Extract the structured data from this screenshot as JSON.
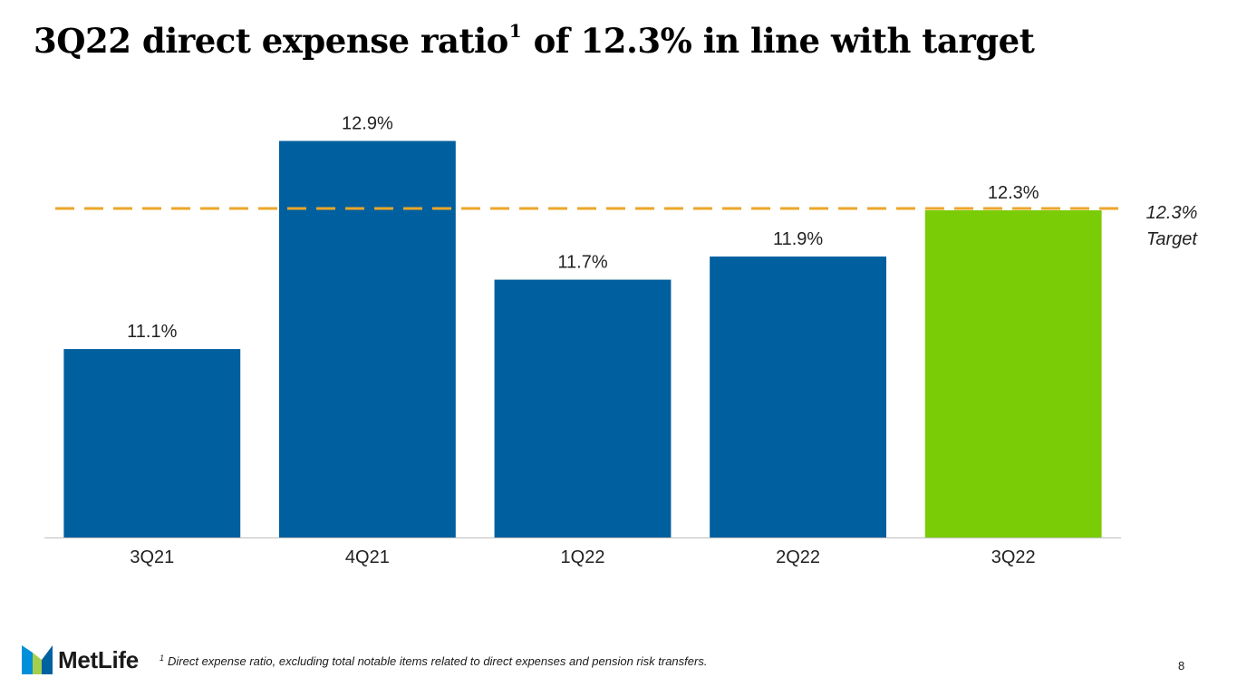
{
  "title": {
    "main": "3Q22 direct expense ratio",
    "superscript": "1",
    "rest": " of 12.3% in line with target"
  },
  "chart_data": {
    "type": "bar",
    "categories": [
      "3Q21",
      "4Q21",
      "1Q22",
      "2Q22",
      "3Q22"
    ],
    "values": [
      11.1,
      12.9,
      11.7,
      11.9,
      12.3
    ],
    "value_labels": [
      "11.1%",
      "12.9%",
      "11.7%",
      "11.9%",
      "12.3%"
    ],
    "colors": [
      "#005F9E",
      "#005F9E",
      "#005F9E",
      "#005F9E",
      "#7ACC06"
    ],
    "target": {
      "value": 12.3,
      "label_value": "12.3%",
      "label_text": "Target",
      "color": "#EBA629"
    },
    "ylim": [
      9.47,
      13.1
    ],
    "axis_color": "#BFBFBF",
    "title": "",
    "xlabel": "",
    "ylabel": ""
  },
  "logo": {
    "text": "MetLife",
    "colors": [
      "#0090DA",
      "#A4CE4E",
      "#0061A0"
    ]
  },
  "footnote": {
    "marker": "1",
    "text": "Direct expense ratio, excluding total notable items related to direct expenses and pension risk transfers."
  },
  "page_number": "8"
}
